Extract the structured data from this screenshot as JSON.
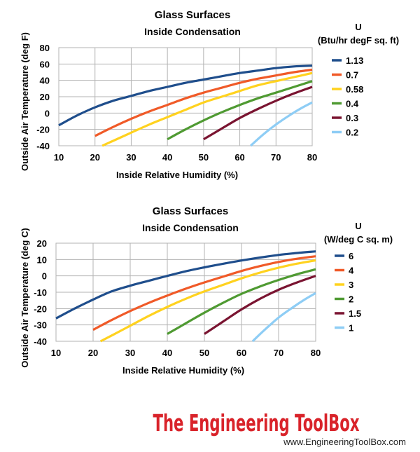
{
  "chart_data": [
    {
      "type": "line",
      "title": "Glass Surfaces",
      "subtitle": "Inside Condensation",
      "xlabel": "Inside Relative Humidity (%)",
      "ylabel": "Outside Air Temperature (deg F)",
      "xlim": [
        10,
        80
      ],
      "ylim": [
        -40,
        80
      ],
      "xticks": [
        10,
        20,
        30,
        40,
        50,
        60,
        70,
        80
      ],
      "yticks": [
        80,
        60,
        40,
        20,
        0,
        -20,
        -40
      ],
      "grid": true,
      "legend_position": "right",
      "legend_title": [
        "U",
        "(Btu/hr degF sq. ft)"
      ],
      "series": [
        {
          "name": "1.13",
          "color": "#1f4e8c",
          "x": [
            10,
            15,
            20,
            25,
            30,
            35,
            40,
            45,
            50,
            55,
            60,
            65,
            70,
            75,
            80
          ],
          "y": [
            -15,
            -3,
            7,
            15,
            21,
            27,
            32,
            37,
            41,
            45,
            49,
            52,
            55,
            57,
            58
          ]
        },
        {
          "name": "0.7",
          "color": "#f05a28",
          "x": [
            20,
            25,
            30,
            35,
            40,
            45,
            50,
            55,
            60,
            65,
            70,
            75,
            80
          ],
          "y": [
            -28,
            -17,
            -7,
            2,
            10,
            18,
            25,
            31,
            37,
            42,
            46,
            50,
            53
          ]
        },
        {
          "name": "0.58",
          "color": "#ffd21f",
          "x": [
            22,
            25,
            30,
            35,
            40,
            45,
            50,
            55,
            60,
            65,
            70,
            75,
            80
          ],
          "y": [
            -40,
            -34,
            -24,
            -14,
            -5,
            4,
            13,
            20,
            27,
            34,
            39,
            44,
            49
          ]
        },
        {
          "name": "0.4",
          "color": "#4f9a32",
          "x": [
            40,
            45,
            50,
            55,
            60,
            65,
            70,
            75,
            80
          ],
          "y": [
            -32,
            -20,
            -9,
            1,
            10,
            18,
            25,
            32,
            39
          ]
        },
        {
          "name": "0.3",
          "color": "#7a1431",
          "x": [
            50,
            55,
            60,
            65,
            70,
            75,
            80
          ],
          "y": [
            -32,
            -19,
            -6,
            5,
            15,
            24,
            32
          ]
        },
        {
          "name": "0.2",
          "color": "#8ecdf5",
          "x": [
            63,
            66,
            70,
            74,
            77,
            80
          ],
          "y": [
            -40,
            -28,
            -14,
            -2,
            6,
            13
          ]
        }
      ]
    },
    {
      "type": "line",
      "title": "Glass Surfaces",
      "subtitle": "Inside Condensation",
      "xlabel": "Inside Relative Humidity (%)",
      "ylabel": "Outside Air Temperature (deg C)",
      "xlim": [
        10,
        80
      ],
      "ylim": [
        -40,
        20
      ],
      "xticks": [
        10,
        20,
        30,
        40,
        50,
        60,
        70,
        80
      ],
      "yticks": [
        20,
        10,
        0,
        -10,
        -20,
        -30,
        -40
      ],
      "grid": true,
      "legend_position": "right",
      "legend_title": [
        "U",
        "(W/deg C sq. m)"
      ],
      "series": [
        {
          "name": "6",
          "color": "#1f4e8c",
          "x": [
            10,
            15,
            20,
            25,
            30,
            35,
            40,
            45,
            50,
            55,
            60,
            65,
            70,
            75,
            80
          ],
          "y": [
            -26,
            -20,
            -14.5,
            -9.5,
            -6,
            -3,
            0,
            2.8,
            5.2,
            7.4,
            9.4,
            11.2,
            12.8,
            14,
            15
          ]
        },
        {
          "name": "4",
          "color": "#f05a28",
          "x": [
            20,
            25,
            30,
            35,
            40,
            45,
            50,
            55,
            60,
            65,
            70,
            75,
            80
          ],
          "y": [
            -33,
            -27,
            -21.5,
            -16.5,
            -12,
            -7.8,
            -4,
            -0.5,
            3,
            6,
            8.5,
            10.5,
            12
          ]
        },
        {
          "name": "3",
          "color": "#ffd21f",
          "x": [
            22,
            25,
            30,
            35,
            40,
            45,
            50,
            55,
            60,
            65,
            70,
            75,
            80
          ],
          "y": [
            -40,
            -36.5,
            -30.5,
            -24.5,
            -19,
            -14,
            -9.5,
            -5.5,
            -1.5,
            2,
            5,
            7.5,
            9.5
          ]
        },
        {
          "name": "2",
          "color": "#4f9a32",
          "x": [
            40,
            45,
            50,
            55,
            60,
            65,
            70,
            75,
            80
          ],
          "y": [
            -35.5,
            -29,
            -22.5,
            -16.5,
            -11,
            -6.5,
            -2.5,
            1,
            4
          ]
        },
        {
          "name": "1.5",
          "color": "#7a1431",
          "x": [
            50,
            55,
            60,
            65,
            70,
            75,
            80
          ],
          "y": [
            -35.5,
            -28,
            -20.5,
            -14,
            -8.5,
            -4,
            0
          ]
        },
        {
          "name": "1",
          "color": "#8ecdf5",
          "x": [
            63,
            66,
            70,
            74,
            77,
            80
          ],
          "y": [
            -40,
            -33.5,
            -25.5,
            -19,
            -14.5,
            -10.5
          ]
        }
      ]
    }
  ],
  "branding": {
    "logo_text": "The Engineering ToolBox",
    "url": "www.EngineeringToolBox.com"
  }
}
